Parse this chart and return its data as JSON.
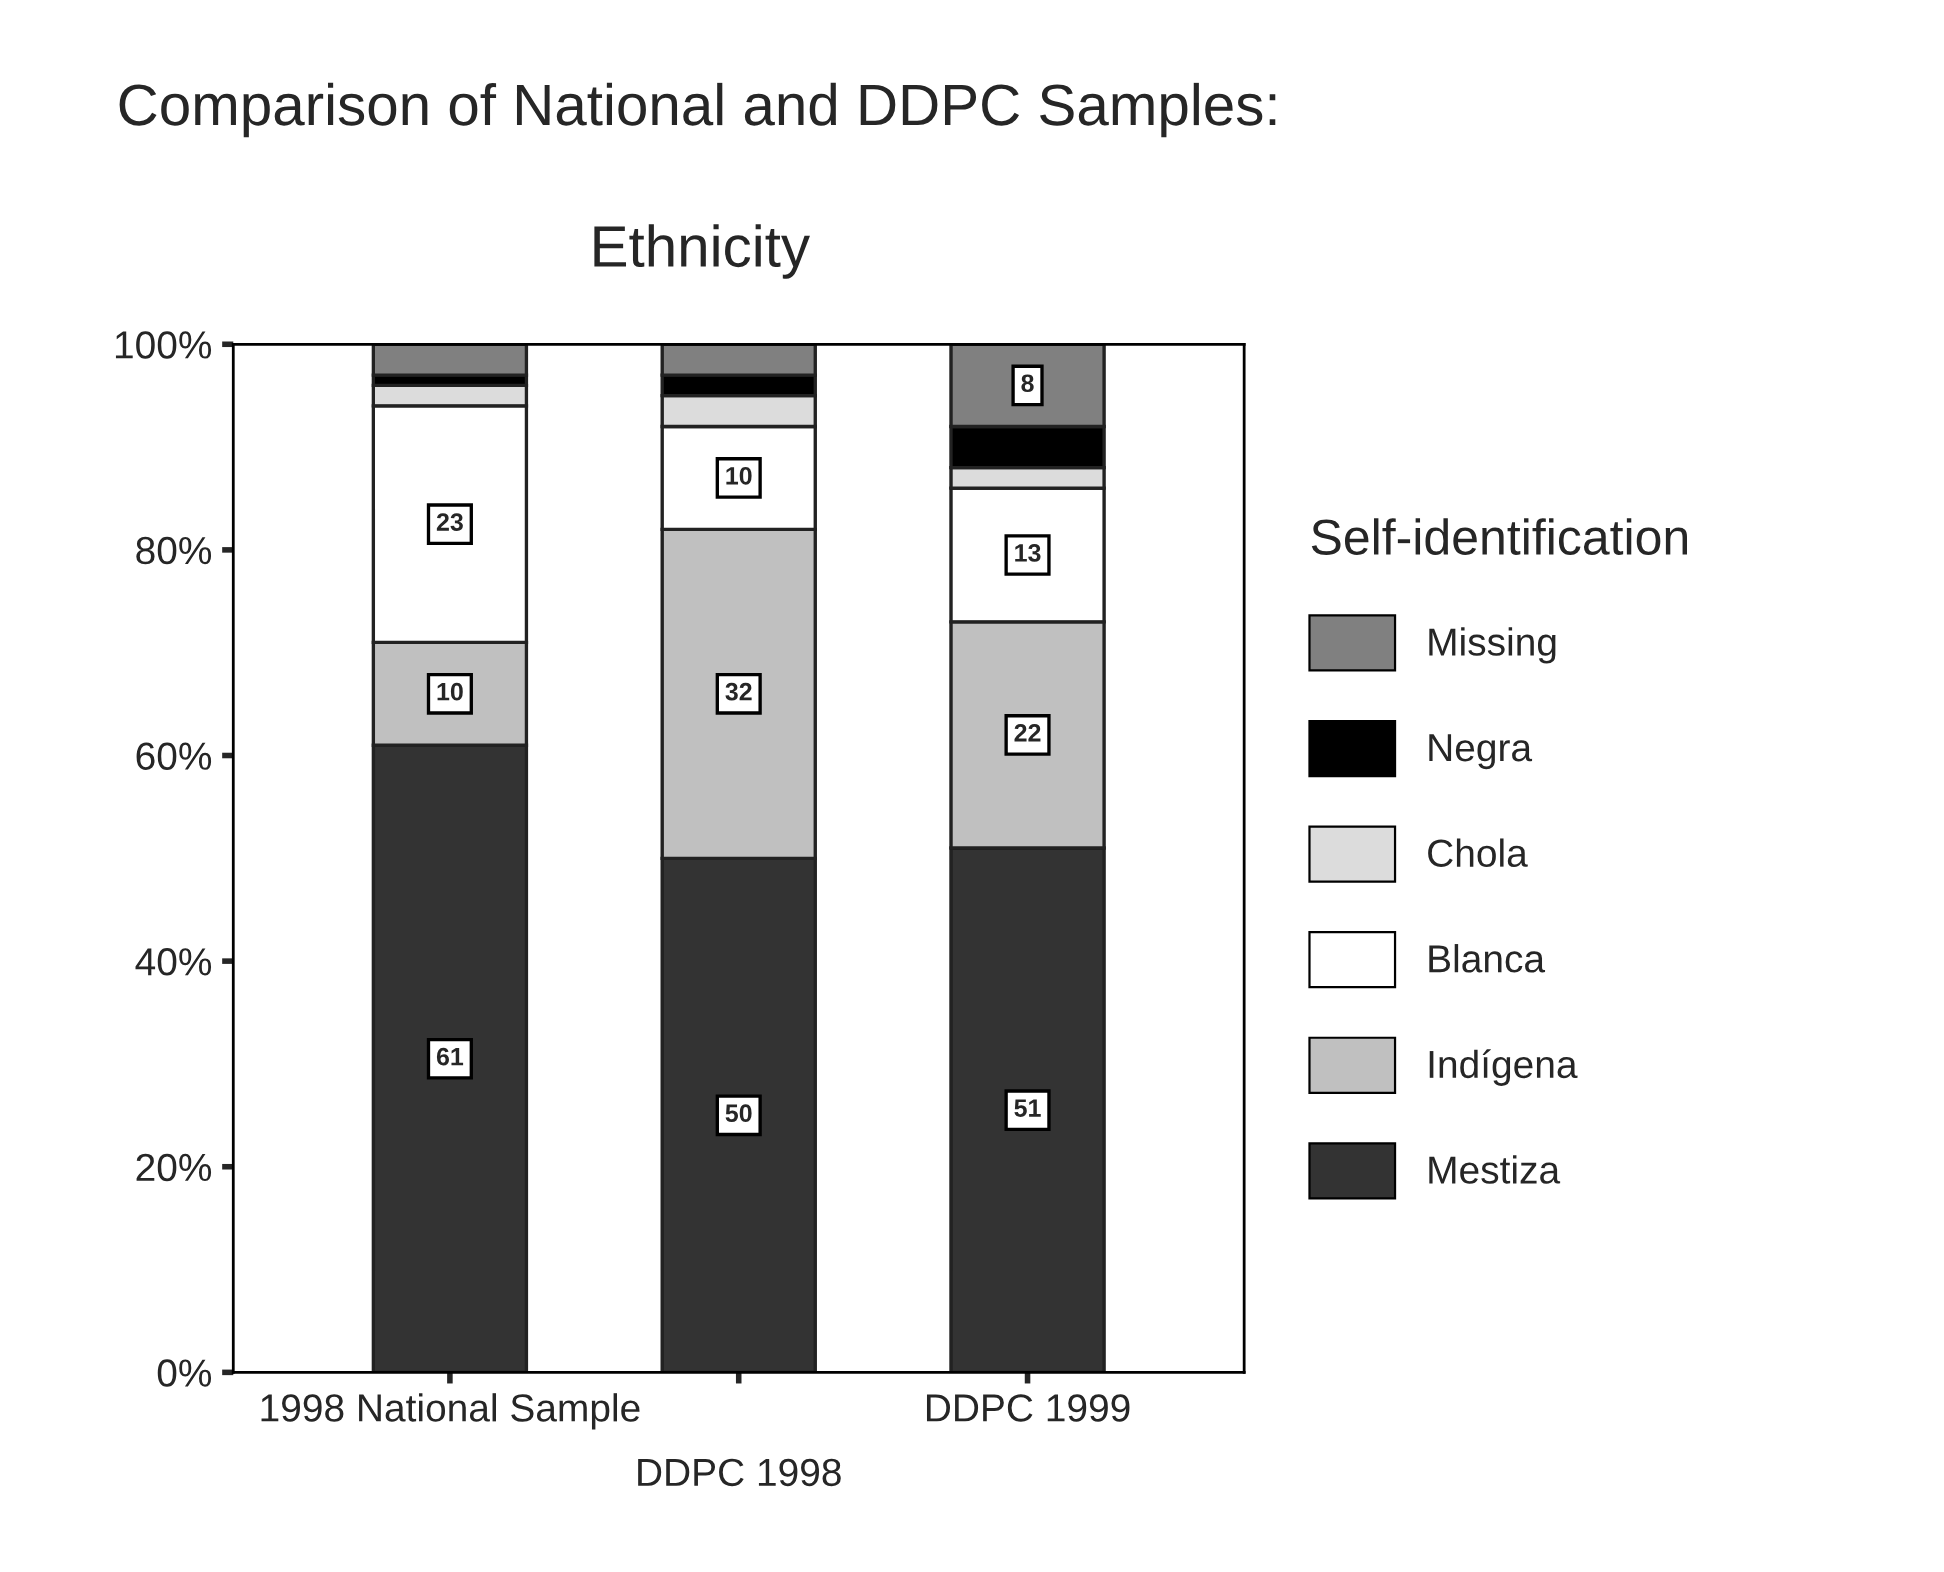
{
  "chart_data": {
    "type": "bar",
    "stacked": true,
    "title": "Comparison of National and DDPC Samples:",
    "subtitle": "Ethnicity",
    "categories": [
      "1998 National Sample",
      "DDPC 1998",
      "DDPC 1999"
    ],
    "series": [
      {
        "name": "Mestiza",
        "color": "#333333",
        "values": [
          61,
          50,
          51
        ],
        "value_labels": [
          "61",
          "50",
          "51"
        ]
      },
      {
        "name": "Indígena",
        "color": "#c0c0c0",
        "values": [
          10,
          32,
          22
        ],
        "value_labels": [
          "10",
          "32",
          "22"
        ]
      },
      {
        "name": "Blanca",
        "color": "#ffffff",
        "values": [
          23,
          10,
          13
        ],
        "value_labels": [
          "23",
          "10",
          "13"
        ]
      },
      {
        "name": "Chola",
        "color": "#dcdcdc",
        "values": [
          2,
          3,
          2
        ],
        "value_labels": [
          null,
          null,
          null
        ]
      },
      {
        "name": "Negra",
        "color": "#000000",
        "values": [
          1,
          2,
          4
        ],
        "value_labels": [
          null,
          null,
          null
        ]
      },
      {
        "name": "Missing",
        "color": "#808080",
        "values": [
          3,
          3,
          8
        ],
        "value_labels": [
          null,
          null,
          "8"
        ]
      }
    ],
    "ylim": [
      0,
      100
    ],
    "yticks": [
      {
        "value": 0,
        "label": "0%"
      },
      {
        "value": 20,
        "label": "20%"
      },
      {
        "value": 40,
        "label": "40%"
      },
      {
        "value": 60,
        "label": "60%"
      },
      {
        "value": 80,
        "label": "80%"
      },
      {
        "value": 100,
        "label": "100%"
      }
    ],
    "legend_title": "Self-identification",
    "legend": "right",
    "grid": false
  }
}
